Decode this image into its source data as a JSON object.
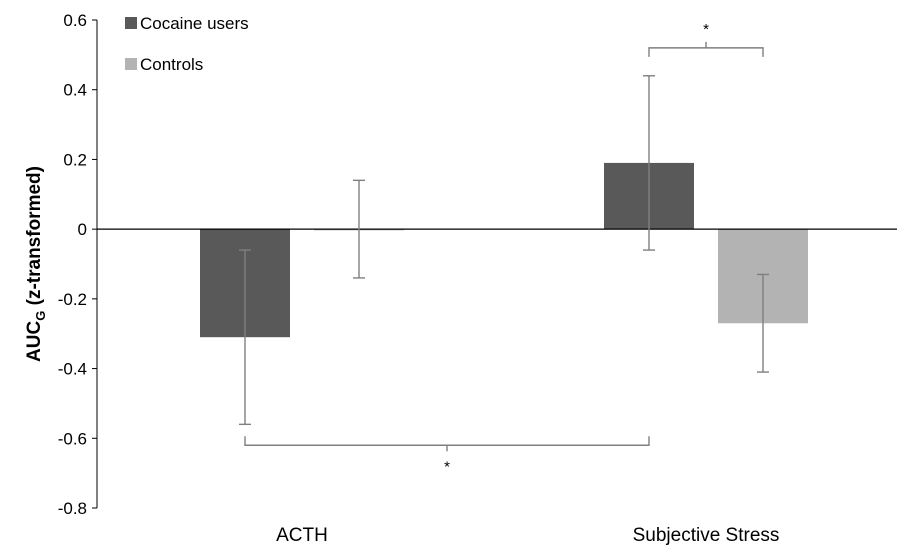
{
  "chart_data": {
    "type": "bar",
    "categories": [
      "ACTH",
      "Subjective Stress"
    ],
    "series": [
      {
        "name": "Cocaine users",
        "color": "#595959",
        "values": [
          -0.31,
          0.19
        ],
        "error": [
          0.25,
          0.25
        ]
      },
      {
        "name": "Controls",
        "color": "#b3b3b3",
        "values": [
          0.0,
          -0.27
        ],
        "error": [
          0.14,
          0.14
        ]
      }
    ],
    "ylabel_main": "AUC",
    "ylabel_sub": "G",
    "ylabel_rest": " (z-transformed)",
    "ylim": [
      -0.8,
      0.6
    ],
    "yticks": [
      0.6,
      0.4,
      0.2,
      0,
      -0.2,
      -0.4,
      -0.6,
      -0.8
    ],
    "ytick_labels": [
      "0.6",
      "0.4",
      "0.2",
      "0",
      "-0.2",
      "-0.4",
      "-0.6",
      "-0.8"
    ],
    "legend_position": "top-left",
    "grid": false,
    "error_color": "#7f7f7f",
    "significance": [
      {
        "label": "*",
        "from": {
          "category": 0,
          "series": 0
        },
        "to": {
          "category": 1,
          "series": 0
        },
        "level": -0.62,
        "direction": "down"
      },
      {
        "label": "*",
        "from": {
          "category": 1,
          "series": 0
        },
        "to": {
          "category": 1,
          "series": 1
        },
        "level": 0.52,
        "direction": "up"
      }
    ]
  }
}
